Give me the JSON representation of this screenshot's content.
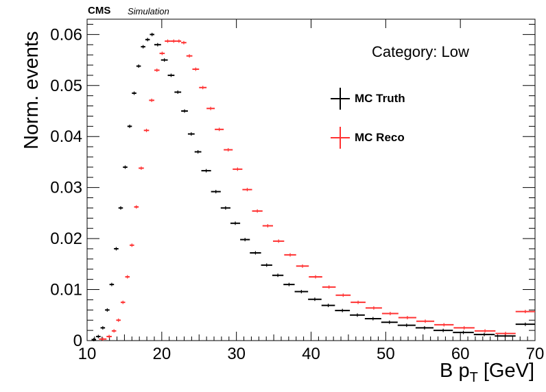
{
  "header": {
    "experiment": "CMS",
    "tag": "Simulation"
  },
  "annotation": "Category: Low",
  "chart_data": {
    "type": "scatter",
    "xlabel_main": "B p",
    "xlabel_sub": "T",
    "xlabel_unit": " [GeV]",
    "ylabel": "Norm. events",
    "xlim": [
      10,
      70
    ],
    "ylim": [
      0,
      0.063
    ],
    "xticks": [
      "10",
      "20",
      "30",
      "40",
      "50",
      "60",
      "70"
    ],
    "yticks": [
      "0",
      "0.01",
      "0.02",
      "0.03",
      "0.04",
      "0.05",
      "0.06"
    ],
    "legend_position": "upper-right",
    "series": [
      {
        "name": "MC Truth",
        "color": "#000000",
        "points": [
          [
            10.6,
            11.2,
            0.0002
          ],
          [
            11.2,
            11.8,
            0.0008
          ],
          [
            11.8,
            12.4,
            0.0025
          ],
          [
            12.4,
            13.0,
            0.006
          ],
          [
            13.0,
            13.6,
            0.011
          ],
          [
            13.6,
            14.2,
            0.018
          ],
          [
            14.2,
            14.8,
            0.026
          ],
          [
            14.8,
            15.4,
            0.034
          ],
          [
            15.4,
            16.0,
            0.042
          ],
          [
            16.0,
            16.6,
            0.0485
          ],
          [
            16.6,
            17.2,
            0.0538
          ],
          [
            17.2,
            17.8,
            0.0576
          ],
          [
            17.8,
            18.4,
            0.059
          ],
          [
            18.4,
            19.0,
            0.06
          ],
          [
            19.0,
            19.9,
            0.058
          ],
          [
            19.9,
            20.8,
            0.055
          ],
          [
            20.8,
            21.7,
            0.052
          ],
          [
            21.7,
            22.6,
            0.0487
          ],
          [
            22.6,
            23.5,
            0.045
          ],
          [
            23.5,
            24.4,
            0.0405
          ],
          [
            24.4,
            25.3,
            0.037
          ],
          [
            25.3,
            26.6,
            0.0333
          ],
          [
            26.6,
            27.9,
            0.0292
          ],
          [
            27.9,
            29.2,
            0.026
          ],
          [
            29.2,
            30.5,
            0.023
          ],
          [
            30.5,
            31.8,
            0.0198
          ],
          [
            31.8,
            33.3,
            0.0172
          ],
          [
            33.3,
            34.8,
            0.0148
          ],
          [
            34.8,
            36.3,
            0.0128
          ],
          [
            36.3,
            37.8,
            0.011
          ],
          [
            37.8,
            39.6,
            0.0096
          ],
          [
            39.6,
            41.4,
            0.0081
          ],
          [
            41.4,
            43.2,
            0.0069
          ],
          [
            43.2,
            45.2,
            0.0059
          ],
          [
            45.2,
            47.2,
            0.005
          ],
          [
            47.2,
            49.4,
            0.0043
          ],
          [
            49.4,
            51.6,
            0.0036
          ],
          [
            51.6,
            54.0,
            0.003
          ],
          [
            54.0,
            56.4,
            0.0025
          ],
          [
            56.4,
            59.0,
            0.002
          ],
          [
            59.0,
            61.8,
            0.0016
          ],
          [
            61.8,
            64.6,
            0.0012
          ],
          [
            64.6,
            67.4,
            0.0009
          ],
          [
            67.4,
            70.0,
            0.0032
          ]
        ]
      },
      {
        "name": "MC Reco",
        "color": "#ff3030",
        "points": [
          [
            11.6,
            12.6,
            0.0003
          ],
          [
            12.6,
            13.3,
            0.0008
          ],
          [
            13.3,
            13.9,
            0.0019
          ],
          [
            13.9,
            14.5,
            0.004
          ],
          [
            14.5,
            15.1,
            0.0075
          ],
          [
            15.1,
            15.7,
            0.0125
          ],
          [
            15.7,
            16.3,
            0.0187
          ],
          [
            16.3,
            16.9,
            0.0262
          ],
          [
            16.9,
            17.6,
            0.0338
          ],
          [
            17.6,
            18.3,
            0.0412
          ],
          [
            18.3,
            19.0,
            0.0471
          ],
          [
            19.0,
            19.7,
            0.053
          ],
          [
            19.7,
            20.4,
            0.0563
          ],
          [
            20.4,
            21.2,
            0.0587
          ],
          [
            21.2,
            22.0,
            0.0587
          ],
          [
            22.0,
            22.6,
            0.0587
          ],
          [
            22.6,
            23.3,
            0.0584
          ],
          [
            23.3,
            24.1,
            0.0558
          ],
          [
            24.1,
            25.0,
            0.0532
          ],
          [
            25.0,
            26.0,
            0.0496
          ],
          [
            26.0,
            27.1,
            0.0455
          ],
          [
            27.1,
            28.3,
            0.0414
          ],
          [
            28.3,
            29.5,
            0.0374
          ],
          [
            29.5,
            30.8,
            0.0336
          ],
          [
            30.8,
            32.1,
            0.0296
          ],
          [
            32.1,
            33.5,
            0.0254
          ],
          [
            33.5,
            34.9,
            0.0225
          ],
          [
            34.9,
            36.4,
            0.0195
          ],
          [
            36.4,
            38.0,
            0.0168
          ],
          [
            38.0,
            39.7,
            0.0146
          ],
          [
            39.7,
            41.5,
            0.0125
          ],
          [
            41.5,
            43.3,
            0.0105
          ],
          [
            43.3,
            45.3,
            0.0089
          ],
          [
            45.3,
            47.3,
            0.0075
          ],
          [
            47.3,
            49.5,
            0.0064
          ],
          [
            49.5,
            51.7,
            0.0053
          ],
          [
            51.7,
            54.1,
            0.0045
          ],
          [
            54.1,
            56.5,
            0.0038
          ],
          [
            56.5,
            59.1,
            0.0031
          ],
          [
            59.1,
            61.9,
            0.0025
          ],
          [
            61.9,
            64.7,
            0.0019
          ],
          [
            64.7,
            67.4,
            0.0014
          ],
          [
            67.4,
            70.0,
            0.0057
          ]
        ]
      }
    ]
  }
}
